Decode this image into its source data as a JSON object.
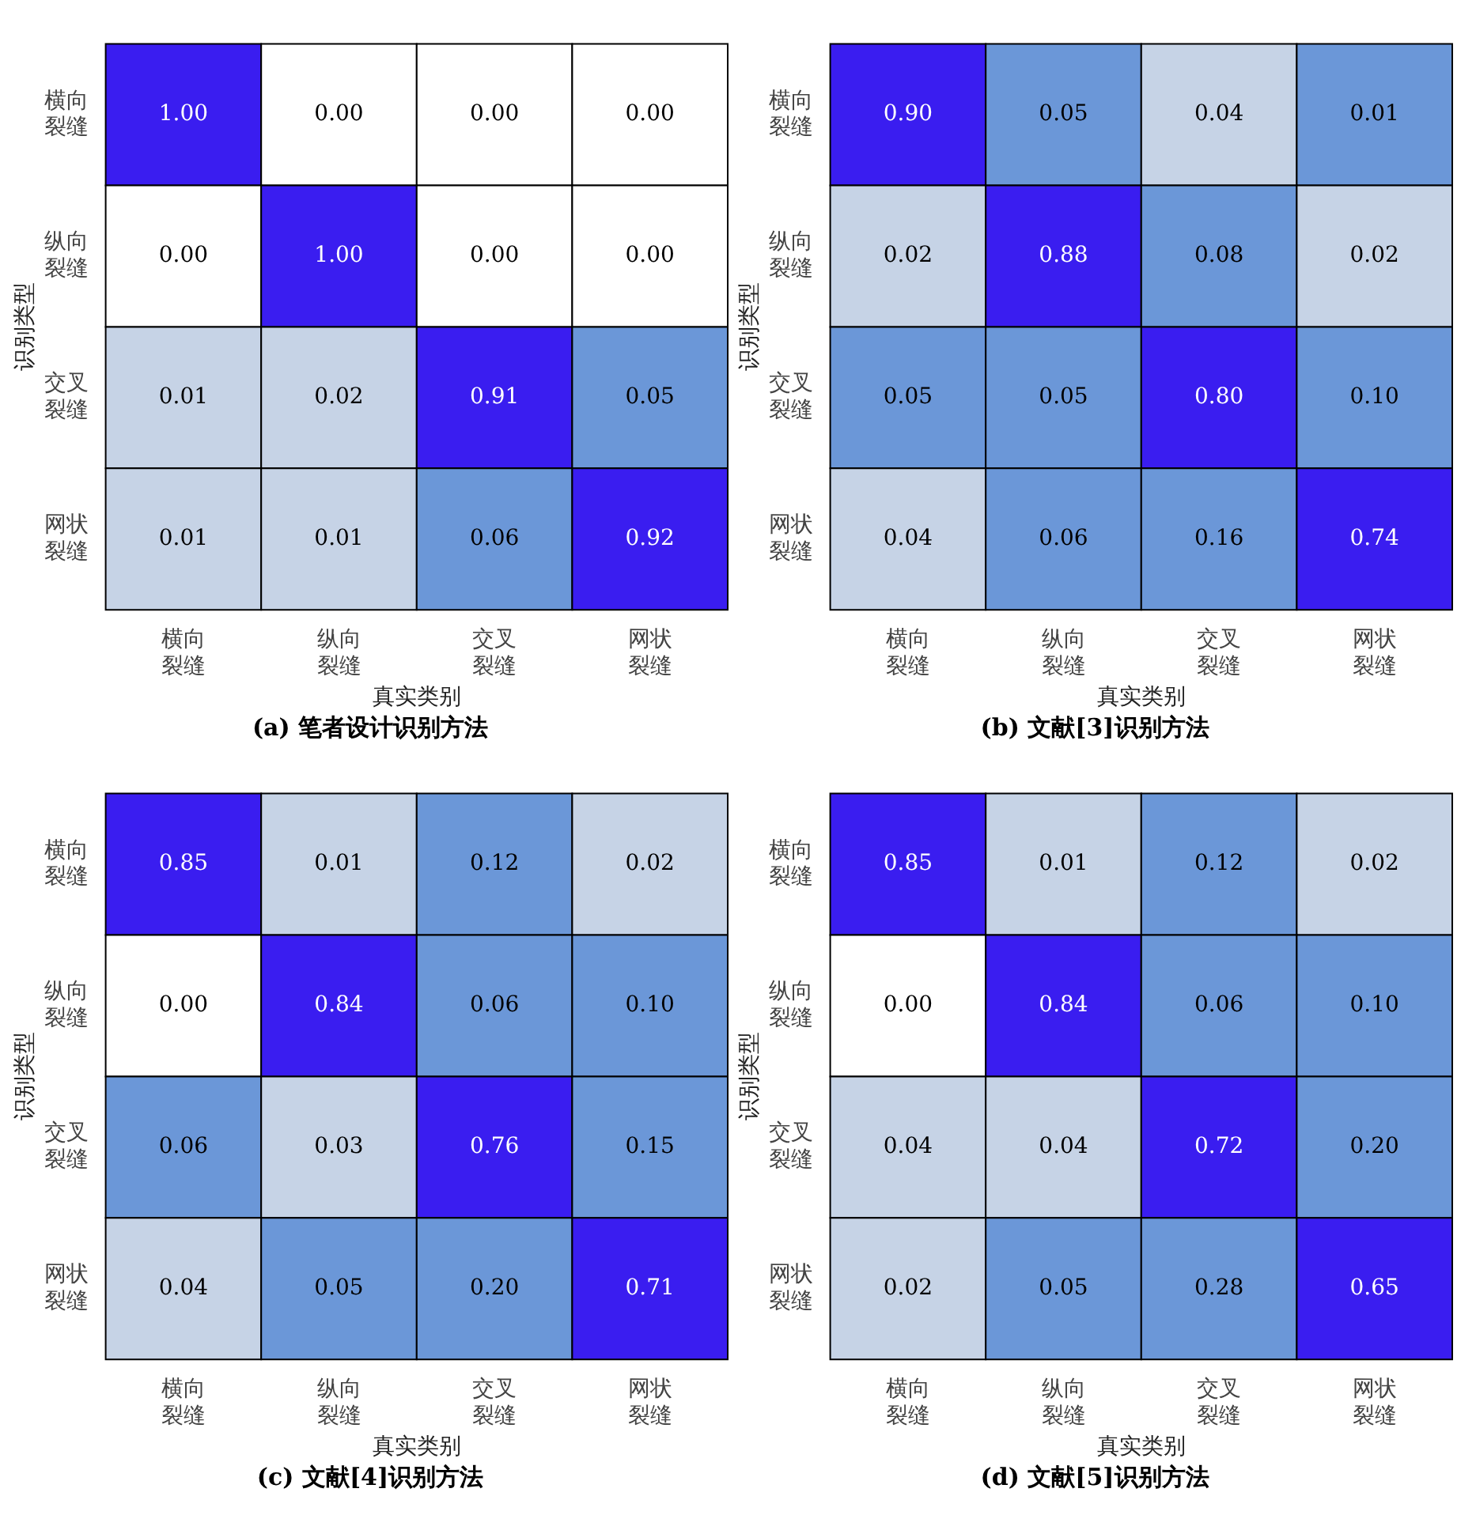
{
  "chart_data": [
    {
      "type": "heatmap",
      "title": "(a) 笔者设计识别方法",
      "xlabel": "真实类别",
      "ylabel": "识别类型",
      "categories": [
        "横向裂缝",
        "纵向裂缝",
        "交叉裂缝",
        "网状裂缝"
      ],
      "y_categories": [
        "横向裂缝",
        "纵向裂缝",
        "交叉裂缝",
        "网状裂缝"
      ],
      "cells": [
        [
          1,
          0,
          0,
          0
        ],
        [
          0,
          1,
          0,
          0
        ],
        [
          0.01,
          0.02,
          0.91,
          0.05
        ],
        [
          0.01,
          0.01,
          0.06,
          0.92
        ]
      ],
      "cell_labels": [
        [
          "1.00",
          "0.00",
          "0.00",
          "0.00"
        ],
        [
          "0.00",
          "1.00",
          "0.00",
          "0.00"
        ],
        [
          "0.01",
          "0.02",
          "0.91",
          "0.05"
        ],
        [
          "0.01",
          "0.01",
          "0.06",
          "0.92"
        ]
      ],
      "colors": [
        [
          "#3a1df0",
          "#ffffff",
          "#ffffff",
          "#ffffff"
        ],
        [
          "#ffffff",
          "#3a1df0",
          "#ffffff",
          "#ffffff"
        ],
        [
          "#c6d3e6",
          "#c6d3e6",
          "#3a1df0",
          "#6b97d8"
        ],
        [
          "#c6d3e6",
          "#c6d3e6",
          "#6b97d8",
          "#3a1df0"
        ]
      ]
    },
    {
      "type": "heatmap",
      "title": "(b) 文献[3]识别方法",
      "xlabel": "真实类别",
      "ylabel": "识别类型",
      "categories": [
        "横向裂缝",
        "纵向裂缝",
        "交叉裂缝",
        "网状裂缝"
      ],
      "y_categories": [
        "横向裂缝",
        "纵向裂缝",
        "交叉裂缝",
        "网状裂缝"
      ],
      "cells": [
        [
          0.9,
          0.05,
          0.04,
          0.01
        ],
        [
          0.02,
          0.88,
          0.08,
          0.02
        ],
        [
          0.05,
          0.05,
          0.8,
          0.1
        ],
        [
          0.04,
          0.06,
          0.16,
          0.74
        ]
      ],
      "cell_labels": [
        [
          "0.90",
          "0.05",
          "0.04",
          "0.01"
        ],
        [
          "0.02",
          "0.88",
          "0.08",
          "0.02"
        ],
        [
          "0.05",
          "0.05",
          "0.80",
          "0.10"
        ],
        [
          "0.04",
          "0.06",
          "0.16",
          "0.74"
        ]
      ],
      "colors": [
        [
          "#3a1df0",
          "#6b97d8",
          "#c6d3e6",
          "#6b97d8"
        ],
        [
          "#c6d3e6",
          "#3a1df0",
          "#6b97d8",
          "#c6d3e6"
        ],
        [
          "#6b97d8",
          "#6b97d8",
          "#3a1df0",
          "#6b97d8"
        ],
        [
          "#c6d3e6",
          "#6b97d8",
          "#6b97d8",
          "#3a1df0"
        ]
      ]
    },
    {
      "type": "heatmap",
      "title": "(c) 文献[4]识别方法",
      "xlabel": "真实类别",
      "ylabel": "识别类型",
      "categories": [
        "横向裂缝",
        "纵向裂缝",
        "交叉裂缝",
        "网状裂缝"
      ],
      "y_categories": [
        "横向裂缝",
        "纵向裂缝",
        "交叉裂缝",
        "网状裂缝"
      ],
      "cells": [
        [
          0.85,
          0.01,
          0.12,
          0.02
        ],
        [
          0,
          0.84,
          0.06,
          0.1
        ],
        [
          0.06,
          0.03,
          0.76,
          0.15
        ],
        [
          0.04,
          0.05,
          0.2,
          0.71
        ]
      ],
      "cell_labels": [
        [
          "0.85",
          "0.01",
          "0.12",
          "0.02"
        ],
        [
          "0.00",
          "0.84",
          "0.06",
          "0.10"
        ],
        [
          "0.06",
          "0.03",
          "0.76",
          "0.15"
        ],
        [
          "0.04",
          "0.05",
          "0.20",
          "0.71"
        ]
      ],
      "colors": [
        [
          "#3a1df0",
          "#c6d3e6",
          "#6b97d8",
          "#c6d3e6"
        ],
        [
          "#ffffff",
          "#3a1df0",
          "#6b97d8",
          "#6b97d8"
        ],
        [
          "#6b97d8",
          "#c6d3e6",
          "#3a1df0",
          "#6b97d8"
        ],
        [
          "#c6d3e6",
          "#6b97d8",
          "#6b97d8",
          "#3a1df0"
        ]
      ]
    },
    {
      "type": "heatmap",
      "title": "(d) 文献[5]识别方法",
      "xlabel": "真实类别",
      "ylabel": "识别类型",
      "categories": [
        "横向裂缝",
        "纵向裂缝",
        "交叉裂缝",
        "网状裂缝"
      ],
      "y_categories": [
        "横向裂缝",
        "纵向裂缝",
        "交叉裂缝",
        "网状裂缝"
      ],
      "cells": [
        [
          0.85,
          0.01,
          0.12,
          0.02
        ],
        [
          0,
          0.84,
          0.06,
          0.1
        ],
        [
          0.04,
          0.04,
          0.72,
          0.2
        ],
        [
          0.02,
          0.05,
          0.28,
          0.65
        ]
      ],
      "cell_labels": [
        [
          "0.85",
          "0.01",
          "0.12",
          "0.02"
        ],
        [
          "0.00",
          "0.84",
          "0.06",
          "0.10"
        ],
        [
          "0.04",
          "0.04",
          "0.72",
          "0.20"
        ],
        [
          "0.02",
          "0.05",
          "0.28",
          "0.65"
        ]
      ],
      "colors": [
        [
          "#3a1df0",
          "#c6d3e6",
          "#6b97d8",
          "#c6d3e6"
        ],
        [
          "#ffffff",
          "#3a1df0",
          "#6b97d8",
          "#6b97d8"
        ],
        [
          "#c6d3e6",
          "#c6d3e6",
          "#3a1df0",
          "#6b97d8"
        ],
        [
          "#c6d3e6",
          "#6b97d8",
          "#6b97d8",
          "#3a1df0"
        ]
      ]
    }
  ]
}
